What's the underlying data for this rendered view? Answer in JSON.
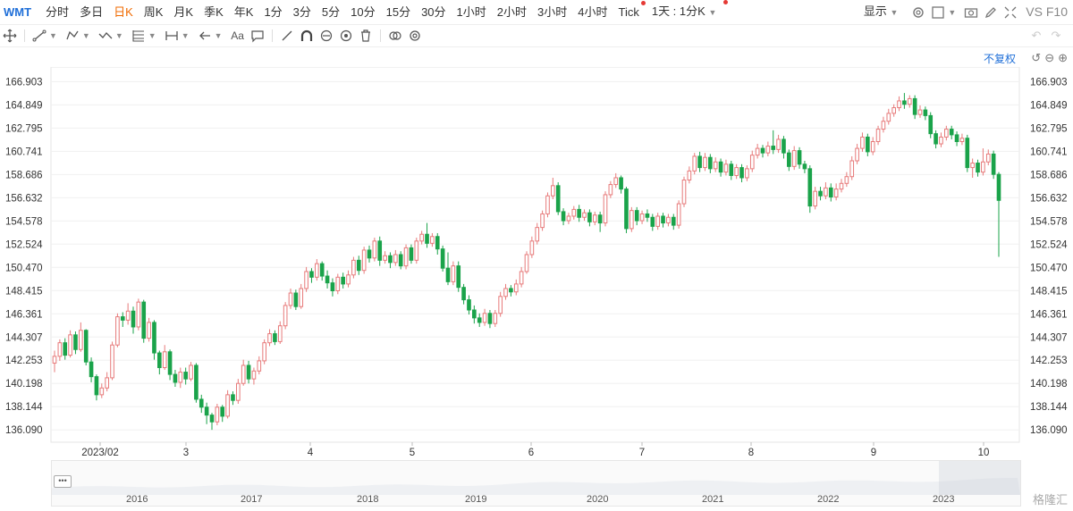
{
  "toolbar": {
    "symbol": "WMT",
    "periods": [
      "分时",
      "多日",
      "日K",
      "周K",
      "月K",
      "季K",
      "年K",
      "1分",
      "3分",
      "5分",
      "10分",
      "15分",
      "30分",
      "1小时",
      "2小时",
      "3小时",
      "4小时",
      "Tick"
    ],
    "active_period": "日K",
    "interval_label": "1天 : 1分K",
    "display_label": "显示",
    "vs_label": "VS F10"
  },
  "adjust_label": "不复权",
  "chart_data": {
    "type": "candlestick",
    "title": "",
    "y_ticks": [
      "166.903",
      "164.849",
      "162.795",
      "160.741",
      "158.686",
      "156.632",
      "154.578",
      "152.524",
      "150.470",
      "148.415",
      "146.361",
      "144.307",
      "142.253",
      "140.198",
      "138.144",
      "136.090"
    ],
    "ylim": [
      135.0,
      168.2
    ],
    "x_labels": [
      "2023/02",
      "3",
      "4",
      "5",
      "6",
      "7",
      "8",
      "9",
      "10"
    ],
    "up_color": "#e77a7a",
    "down_color": "#1aa34a",
    "candles": [
      [
        142.0,
        142.6,
        141.2,
        143.1
      ],
      [
        142.6,
        143.8,
        142.2,
        144.1
      ],
      [
        143.8,
        142.7,
        142.3,
        144.2
      ],
      [
        142.7,
        144.5,
        142.5,
        144.9
      ],
      [
        144.5,
        143.2,
        142.8,
        144.8
      ],
      [
        143.2,
        144.9,
        143.0,
        145.6
      ],
      [
        144.9,
        142.1,
        141.8,
        145.0
      ],
      [
        142.1,
        140.8,
        140.3,
        142.5
      ],
      [
        140.8,
        139.2,
        138.7,
        141.0
      ],
      [
        139.2,
        139.8,
        138.9,
        140.2
      ],
      [
        139.8,
        140.7,
        139.5,
        141.2
      ],
      [
        140.7,
        143.6,
        140.5,
        143.9
      ],
      [
        143.6,
        146.1,
        143.4,
        146.4
      ],
      [
        146.1,
        145.8,
        145.2,
        146.5
      ],
      [
        145.8,
        146.6,
        145.4,
        147.3
      ],
      [
        146.6,
        145.2,
        144.6,
        147.0
      ],
      [
        145.2,
        147.4,
        144.9,
        147.7
      ],
      [
        147.4,
        144.2,
        143.8,
        147.6
      ],
      [
        144.2,
        145.6,
        143.9,
        146.0
      ],
      [
        145.6,
        142.9,
        142.3,
        145.8
      ],
      [
        142.9,
        141.6,
        141.0,
        143.1
      ],
      [
        141.6,
        143.0,
        141.4,
        143.6
      ],
      [
        143.0,
        141.0,
        140.5,
        143.2
      ],
      [
        141.0,
        140.3,
        139.9,
        141.4
      ],
      [
        140.3,
        141.2,
        139.8,
        141.6
      ],
      [
        141.2,
        140.6,
        140.1,
        141.6
      ],
      [
        140.6,
        141.8,
        140.4,
        142.1
      ],
      [
        141.8,
        138.8,
        138.5,
        142.0
      ],
      [
        138.8,
        138.1,
        137.6,
        139.2
      ],
      [
        138.1,
        137.4,
        136.6,
        138.5
      ],
      [
        137.4,
        136.8,
        136.1,
        137.6
      ],
      [
        136.8,
        138.1,
        136.5,
        138.4
      ],
      [
        138.1,
        137.3,
        136.8,
        138.3
      ],
      [
        137.3,
        139.2,
        137.1,
        139.6
      ],
      [
        139.2,
        138.7,
        138.3,
        139.5
      ],
      [
        138.7,
        140.2,
        138.4,
        140.6
      ],
      [
        140.2,
        141.8,
        140.0,
        142.3
      ],
      [
        141.8,
        140.6,
        140.2,
        142.2
      ],
      [
        140.6,
        141.3,
        140.1,
        141.6
      ],
      [
        141.3,
        142.2,
        141.0,
        142.6
      ],
      [
        142.2,
        143.8,
        141.9,
        144.1
      ],
      [
        143.8,
        144.6,
        143.5,
        145.0
      ],
      [
        144.6,
        143.9,
        143.6,
        144.9
      ],
      [
        143.9,
        145.3,
        143.7,
        145.7
      ],
      [
        145.3,
        147.1,
        145.0,
        147.4
      ],
      [
        147.1,
        148.2,
        146.8,
        148.6
      ],
      [
        148.2,
        147.0,
        146.7,
        148.5
      ],
      [
        147.0,
        148.6,
        146.8,
        149.0
      ],
      [
        148.6,
        150.1,
        148.3,
        150.5
      ],
      [
        150.1,
        149.6,
        149.1,
        150.4
      ],
      [
        149.6,
        150.8,
        149.3,
        151.2
      ],
      [
        150.8,
        149.7,
        149.3,
        151.0
      ],
      [
        149.7,
        149.1,
        148.6,
        150.2
      ],
      [
        149.1,
        148.4,
        147.9,
        149.5
      ],
      [
        148.4,
        149.6,
        148.1,
        149.9
      ],
      [
        149.6,
        149.0,
        148.6,
        150.0
      ],
      [
        149.0,
        149.8,
        148.7,
        150.2
      ],
      [
        149.8,
        151.1,
        149.5,
        151.4
      ],
      [
        151.1,
        150.2,
        149.8,
        151.5
      ],
      [
        150.2,
        152.0,
        149.9,
        152.3
      ],
      [
        152.0,
        151.3,
        150.9,
        152.4
      ],
      [
        151.3,
        152.8,
        151.0,
        153.1
      ],
      [
        152.8,
        151.1,
        150.6,
        153.2
      ],
      [
        151.1,
        151.5,
        150.8,
        151.9
      ],
      [
        151.5,
        150.9,
        150.4,
        151.8
      ],
      [
        150.9,
        151.6,
        150.6,
        152.0
      ],
      [
        151.6,
        150.6,
        150.3,
        151.9
      ],
      [
        150.6,
        152.2,
        150.3,
        152.5
      ],
      [
        152.2,
        151.1,
        150.8,
        152.5
      ],
      [
        151.1,
        152.8,
        150.8,
        153.1
      ],
      [
        152.8,
        153.4,
        152.5,
        153.7
      ],
      [
        153.4,
        152.6,
        152.2,
        154.4
      ],
      [
        152.6,
        153.2,
        152.3,
        153.5
      ],
      [
        153.2,
        152.1,
        151.6,
        153.5
      ],
      [
        152.1,
        150.4,
        150.1,
        152.4
      ],
      [
        150.4,
        149.2,
        148.9,
        151.8
      ],
      [
        149.2,
        150.6,
        148.9,
        151.0
      ],
      [
        150.6,
        148.7,
        148.3,
        151.0
      ],
      [
        148.7,
        147.6,
        147.2,
        149.0
      ],
      [
        147.6,
        146.7,
        146.3,
        148.0
      ],
      [
        146.7,
        146.0,
        145.5,
        147.1
      ],
      [
        146.0,
        145.6,
        145.2,
        146.4
      ],
      [
        145.6,
        146.4,
        145.3,
        146.8
      ],
      [
        146.4,
        145.5,
        145.1,
        146.7
      ],
      [
        145.5,
        146.4,
        145.2,
        146.7
      ],
      [
        146.4,
        147.9,
        146.1,
        148.3
      ],
      [
        147.9,
        148.6,
        147.6,
        149.0
      ],
      [
        148.6,
        148.3,
        147.9,
        148.9
      ],
      [
        148.3,
        149.0,
        148.0,
        149.4
      ],
      [
        149.0,
        150.1,
        148.7,
        150.5
      ],
      [
        150.1,
        151.6,
        149.9,
        151.9
      ],
      [
        151.6,
        152.8,
        151.3,
        153.2
      ],
      [
        152.8,
        154.0,
        152.5,
        154.4
      ],
      [
        154.0,
        155.2,
        153.7,
        155.5
      ],
      [
        155.2,
        156.8,
        154.9,
        157.1
      ],
      [
        156.8,
        157.7,
        156.5,
        158.4
      ],
      [
        157.7,
        155.4,
        155.1,
        158.0
      ],
      [
        155.4,
        154.6,
        154.2,
        155.7
      ],
      [
        154.6,
        155.0,
        154.3,
        155.3
      ],
      [
        155.0,
        155.6,
        154.7,
        155.9
      ],
      [
        155.6,
        154.9,
        154.5,
        156.0
      ],
      [
        154.9,
        155.3,
        154.6,
        155.6
      ],
      [
        155.3,
        154.5,
        154.1,
        155.6
      ],
      [
        154.5,
        155.1,
        154.2,
        155.4
      ],
      [
        155.1,
        154.4,
        153.6,
        155.4
      ],
      [
        154.4,
        156.9,
        154.1,
        157.2
      ],
      [
        156.9,
        157.8,
        156.6,
        158.1
      ],
      [
        157.8,
        158.4,
        157.5,
        158.8
      ],
      [
        158.4,
        157.4,
        157.0,
        158.6
      ],
      [
        157.4,
        153.9,
        153.5,
        157.6
      ],
      [
        153.9,
        155.5,
        153.6,
        155.8
      ],
      [
        155.5,
        154.6,
        154.2,
        155.8
      ],
      [
        154.6,
        155.2,
        154.3,
        155.5
      ],
      [
        155.2,
        154.9,
        154.5,
        155.6
      ],
      [
        154.9,
        154.1,
        153.7,
        155.2
      ],
      [
        154.1,
        155.0,
        153.8,
        155.3
      ],
      [
        155.0,
        154.4,
        154.0,
        155.3
      ],
      [
        154.4,
        154.9,
        154.1,
        155.2
      ],
      [
        154.9,
        154.2,
        153.8,
        155.2
      ],
      [
        154.2,
        156.1,
        153.9,
        156.4
      ],
      [
        156.1,
        158.2,
        155.8,
        158.5
      ],
      [
        158.2,
        159.0,
        157.9,
        159.4
      ],
      [
        159.0,
        160.3,
        158.7,
        160.6
      ],
      [
        160.3,
        159.3,
        158.9,
        160.7
      ],
      [
        159.3,
        160.2,
        159.0,
        160.6
      ],
      [
        160.2,
        159.2,
        158.8,
        160.5
      ],
      [
        159.2,
        159.8,
        158.9,
        160.2
      ],
      [
        159.8,
        158.9,
        158.5,
        160.1
      ],
      [
        158.9,
        159.6,
        158.6,
        160.0
      ],
      [
        159.6,
        158.6,
        158.2,
        159.9
      ],
      [
        158.6,
        159.3,
        158.3,
        159.6
      ],
      [
        159.3,
        158.4,
        158.0,
        159.6
      ],
      [
        158.4,
        159.2,
        158.1,
        159.5
      ],
      [
        159.2,
        160.4,
        158.9,
        160.8
      ],
      [
        160.4,
        161.0,
        160.1,
        161.4
      ],
      [
        161.0,
        160.6,
        160.2,
        161.3
      ],
      [
        160.6,
        161.2,
        160.3,
        161.6
      ],
      [
        161.2,
        160.9,
        160.5,
        162.6
      ],
      [
        160.9,
        161.8,
        160.6,
        162.2
      ],
      [
        161.8,
        160.6,
        160.1,
        162.1
      ],
      [
        160.6,
        159.4,
        159.0,
        160.9
      ],
      [
        159.4,
        160.8,
        159.1,
        161.2
      ],
      [
        160.8,
        159.6,
        159.2,
        161.1
      ],
      [
        159.6,
        159.2,
        158.8,
        159.9
      ],
      [
        159.2,
        155.9,
        155.3,
        159.5
      ],
      [
        155.9,
        157.2,
        155.6,
        157.6
      ],
      [
        157.2,
        156.8,
        156.4,
        157.6
      ],
      [
        156.8,
        157.5,
        156.5,
        158.0
      ],
      [
        157.5,
        156.7,
        156.3,
        157.9
      ],
      [
        156.7,
        157.4,
        156.4,
        157.9
      ],
      [
        157.4,
        157.9,
        157.1,
        158.3
      ],
      [
        157.9,
        158.5,
        157.6,
        158.9
      ],
      [
        158.5,
        159.9,
        158.2,
        160.3
      ],
      [
        159.9,
        161.0,
        159.6,
        161.4
      ],
      [
        161.0,
        162.0,
        160.7,
        162.4
      ],
      [
        162.0,
        160.7,
        160.3,
        162.3
      ],
      [
        160.7,
        161.6,
        160.4,
        162.0
      ],
      [
        161.6,
        162.7,
        161.3,
        163.0
      ],
      [
        162.7,
        163.4,
        162.4,
        163.8
      ],
      [
        163.4,
        164.1,
        163.1,
        164.5
      ],
      [
        164.1,
        164.6,
        163.8,
        164.9
      ],
      [
        164.6,
        165.2,
        164.3,
        165.6
      ],
      [
        165.2,
        164.9,
        164.5,
        165.9
      ],
      [
        164.9,
        165.4,
        164.6,
        165.7
      ],
      [
        165.4,
        164.0,
        163.6,
        165.7
      ],
      [
        164.0,
        164.4,
        163.7,
        164.8
      ],
      [
        164.4,
        163.9,
        163.5,
        164.7
      ],
      [
        163.9,
        162.3,
        161.9,
        164.2
      ],
      [
        162.3,
        161.4,
        161.0,
        162.6
      ],
      [
        161.4,
        162.0,
        161.1,
        162.4
      ],
      [
        162.0,
        162.7,
        161.7,
        163.0
      ],
      [
        162.7,
        162.2,
        161.8,
        163.0
      ],
      [
        162.2,
        161.6,
        161.2,
        162.5
      ],
      [
        161.6,
        161.9,
        161.3,
        162.3
      ],
      [
        161.9,
        159.3,
        158.9,
        162.2
      ],
      [
        159.3,
        159.7,
        158.4,
        160.1
      ],
      [
        159.7,
        158.9,
        158.5,
        160.0
      ],
      [
        158.9,
        159.8,
        158.6,
        161.0
      ],
      [
        159.8,
        160.5,
        159.5,
        160.9
      ],
      [
        160.5,
        158.7,
        158.3,
        160.8
      ],
      [
        158.7,
        156.4,
        151.4,
        158.9
      ]
    ]
  },
  "navigator": {
    "years": [
      "2016",
      "2017",
      "2018",
      "2019",
      "2020",
      "2021",
      "2022",
      "2023"
    ],
    "handle_label": "•••"
  },
  "watermark": "格隆汇"
}
